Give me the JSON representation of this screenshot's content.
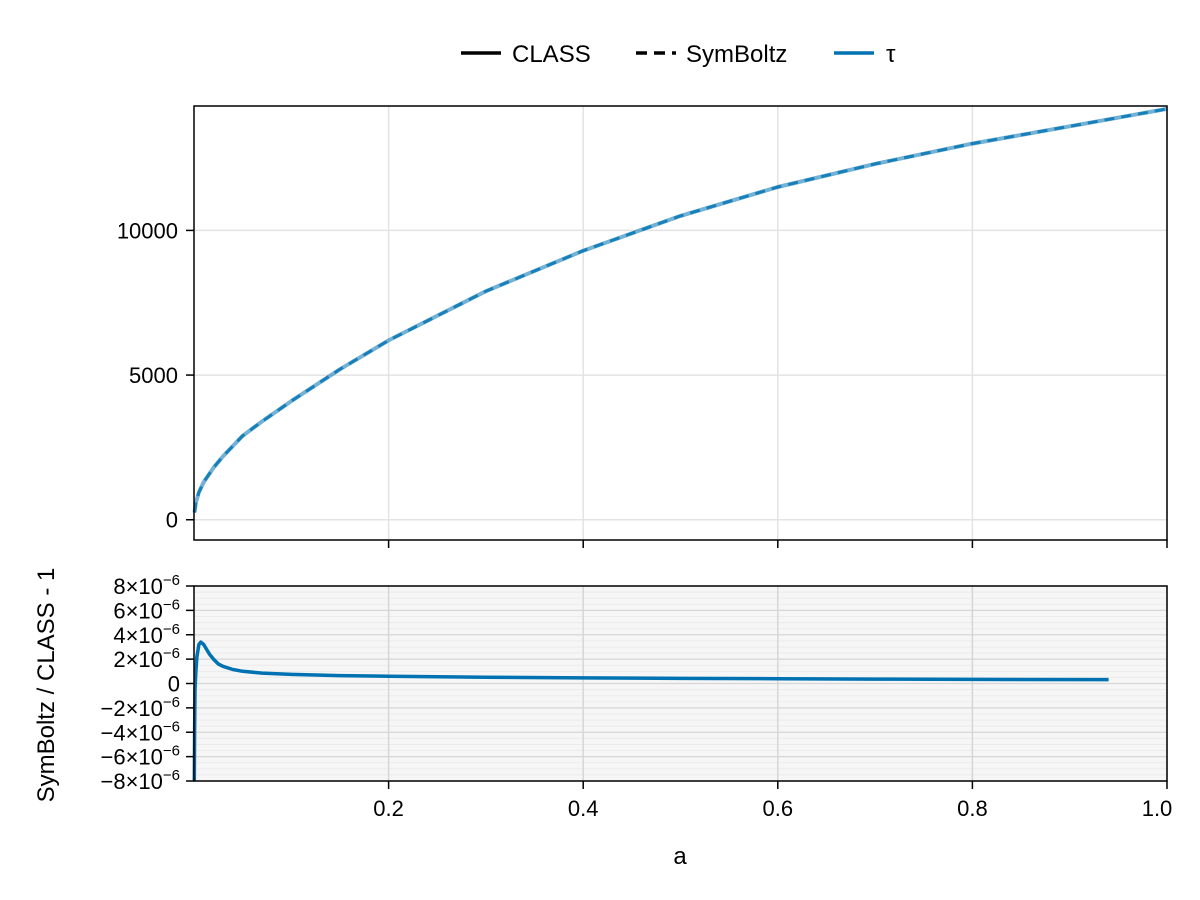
{
  "chart_data": [
    {
      "type": "line",
      "panel": "top",
      "xlim": [
        0.0,
        1.0
      ],
      "ylim": [
        -700,
        14300
      ],
      "xticks": [
        0.2,
        0.4,
        0.6,
        0.8,
        1.0
      ],
      "yticks": [
        0,
        5000,
        10000
      ],
      "ytick_labels": [
        "0",
        "5000",
        "10000"
      ],
      "grid": true,
      "legend_position": "top-center",
      "legend": [
        {
          "label": "CLASS",
          "style": "solid",
          "color": "#000000"
        },
        {
          "label": "SymBoltz",
          "style": "dashed",
          "color": "#000000"
        },
        {
          "label": "τ",
          "style": "solid",
          "color": "#0072b2"
        }
      ],
      "series": [
        {
          "name": "τ",
          "color": "#0072b2",
          "x": [
            0.0005,
            0.002,
            0.005,
            0.01,
            0.02,
            0.03,
            0.05,
            0.07,
            0.1,
            0.15,
            0.2,
            0.3,
            0.4,
            0.5,
            0.6,
            0.7,
            0.8,
            0.9,
            1.0
          ],
          "y": [
            250,
            600,
            950,
            1300,
            1800,
            2200,
            2900,
            3400,
            4100,
            5200,
            6200,
            7900,
            9300,
            10500,
            11500,
            12300,
            13000,
            13600,
            14200
          ]
        }
      ]
    },
    {
      "type": "line",
      "panel": "bottom",
      "xlabel": "a",
      "ylabel": "SymBoltz / CLASS - 1",
      "xlim": [
        0.0,
        1.0
      ],
      "ylim": [
        -8e-06,
        8e-06
      ],
      "xticks": [
        0.2,
        0.4,
        0.6,
        0.8,
        1.0
      ],
      "xtick_labels": [
        "0.2",
        "0.4",
        "0.6",
        "0.8",
        "1.0"
      ],
      "yticks": [
        -8e-06,
        -6e-06,
        -4e-06,
        -2e-06,
        0,
        2e-06,
        4e-06,
        6e-06,
        8e-06
      ],
      "ytick_labels": [
        {
          "base": "−8×10",
          "exp": "−6"
        },
        {
          "base": "−6×10",
          "exp": "−6"
        },
        {
          "base": "−4×10",
          "exp": "−6"
        },
        {
          "base": "−2×10",
          "exp": "−6"
        },
        {
          "base": "0",
          "exp": ""
        },
        {
          "base": "2×10",
          "exp": "−6"
        },
        {
          "base": "4×10",
          "exp": "−6"
        },
        {
          "base": "6×10",
          "exp": "−6"
        },
        {
          "base": "8×10",
          "exp": "−6"
        }
      ],
      "grid": true,
      "series": [
        {
          "name": "τ",
          "color": "#0072b2",
          "x": [
            0.0003,
            0.0006,
            0.001,
            0.002,
            0.003,
            0.005,
            0.007,
            0.01,
            0.013,
            0.016,
            0.02,
            0.025,
            0.03,
            0.04,
            0.05,
            0.07,
            0.1,
            0.15,
            0.2,
            0.3,
            0.4,
            0.5,
            0.6,
            0.7,
            0.8,
            0.94
          ],
          "y": [
            -8e-06,
            -4e-06,
            -5e-07,
            1e-06,
            2.2e-06,
            3.2e-06,
            3.4e-06,
            3.2e-06,
            2.8e-06,
            2.4e-06,
            2e-06,
            1.6e-06,
            1.4e-06,
            1.15e-06,
            1e-06,
            8.5e-07,
            7.5e-07,
            6.5e-07,
            6e-07,
            5.2e-07,
            4.6e-07,
            4.2e-07,
            3.9e-07,
            3.6e-07,
            3.4e-07,
            3.2e-07
          ]
        }
      ]
    }
  ]
}
